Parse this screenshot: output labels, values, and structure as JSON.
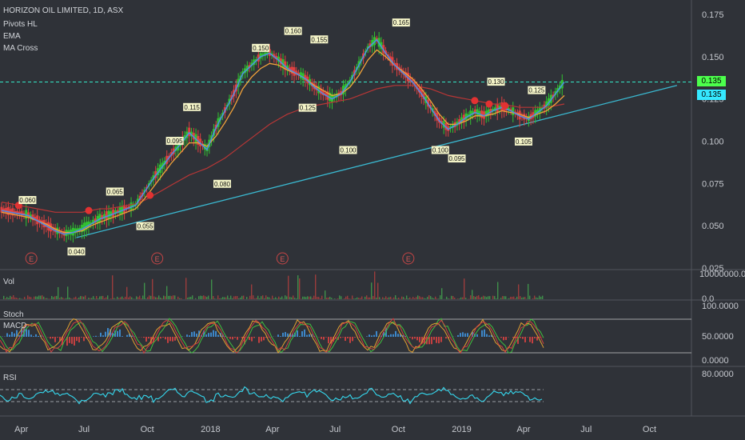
{
  "legend": [
    "HORIZON OIL LIMITED, 1D, ASX",
    "Pivots HL",
    "EMA",
    "MA Cross"
  ],
  "price_tags": [
    {
      "text": "0.135",
      "bg": "#4cff4c"
    },
    {
      "text": "0.135",
      "bg": "#35e8ff"
    }
  ],
  "panes": {
    "vol": "Vol",
    "stoch": "Stoch",
    "macd": "MACD",
    "rsi": "RSI"
  },
  "pane_axis": {
    "vol_top": "10000000.0",
    "vol_bottom": "0.0",
    "stoch_top": "100.0000",
    "stoch_mid": "50.0000",
    "stoch_bottom": "0.0000",
    "rsi_top": "80.0000"
  },
  "earnings_label": "E",
  "colors": {
    "up": "#31c231",
    "down": "#e04040",
    "ema_fast": "#4e8ee6",
    "ema_mid": "#f2a33a",
    "ma_long": "#b83636",
    "trend": "#3ab8d0",
    "hline": "#35e8c8",
    "rsi": "#35d8ee"
  },
  "chart_data": {
    "type": "line",
    "title": "HORIZON OIL LIMITED, 1D, ASX",
    "xlabel": "",
    "ylabel": "",
    "x_ticks": [
      "Apr",
      "Jul",
      "Oct",
      "2018",
      "Apr",
      "Jul",
      "Oct",
      "2019",
      "Apr",
      "Jul",
      "Oct"
    ],
    "y_ticks": [
      "0.175",
      "0.150",
      "0.125",
      "0.100",
      "0.075",
      "0.050",
      "0.025"
    ],
    "ylim": [
      0.025,
      0.175
    ],
    "pivot_labels": [
      "0.060",
      "0.040",
      "0.065",
      "0.055",
      "0.095",
      "0.115",
      "0.080",
      "0.150",
      "0.160",
      "0.155",
      "0.125",
      "0.100",
      "0.165",
      "0.100",
      "0.095",
      "0.130",
      "0.105",
      "0.125"
    ],
    "pivots": [
      {
        "label": "0.060",
        "x": "2017-04-10",
        "y": 0.06,
        "pos": "above"
      },
      {
        "label": "0.040",
        "x": "2017-06-20",
        "y": 0.04,
        "pos": "below"
      },
      {
        "label": "0.065",
        "x": "2017-08-15",
        "y": 0.065,
        "pos": "above"
      },
      {
        "label": "0.055",
        "x": "2017-09-28",
        "y": 0.055,
        "pos": "below"
      },
      {
        "label": "0.095",
        "x": "2017-11-10",
        "y": 0.095,
        "pos": "above"
      },
      {
        "label": "0.115",
        "x": "2017-12-05",
        "y": 0.115,
        "pos": "above"
      },
      {
        "label": "0.080",
        "x": "2018-01-18",
        "y": 0.08,
        "pos": "below"
      },
      {
        "label": "0.150",
        "x": "2018-03-15",
        "y": 0.15,
        "pos": "above"
      },
      {
        "label": "0.160",
        "x": "2018-05-01",
        "y": 0.16,
        "pos": "above"
      },
      {
        "label": "0.155",
        "x": "2018-06-08",
        "y": 0.155,
        "pos": "above"
      },
      {
        "label": "0.125",
        "x": "2018-05-22",
        "y": 0.125,
        "pos": "below"
      },
      {
        "label": "0.100",
        "x": "2018-07-20",
        "y": 0.1,
        "pos": "below"
      },
      {
        "label": "0.165",
        "x": "2018-10-05",
        "y": 0.165,
        "pos": "above"
      },
      {
        "label": "0.100",
        "x": "2018-12-01",
        "y": 0.1,
        "pos": "below"
      },
      {
        "label": "0.095",
        "x": "2018-12-25",
        "y": 0.095,
        "pos": "below"
      },
      {
        "label": "0.130",
        "x": "2019-02-20",
        "y": 0.13,
        "pos": "above"
      },
      {
        "label": "0.105",
        "x": "2019-04-01",
        "y": 0.105,
        "pos": "below"
      },
      {
        "label": "0.125",
        "x": "2019-04-20",
        "y": 0.125,
        "pos": "above"
      }
    ],
    "series": [
      {
        "values": [
          0.059,
          0.058,
          0.057,
          0.056,
          0.053,
          0.05,
          0.047,
          0.045,
          0.046,
          0.048,
          0.051,
          0.054,
          0.056,
          0.058,
          0.06,
          0.062,
          0.07,
          0.078,
          0.085,
          0.092,
          0.098,
          0.105,
          0.1,
          0.095,
          0.108,
          0.118,
          0.128,
          0.14,
          0.145,
          0.15,
          0.152,
          0.148,
          0.143,
          0.14,
          0.137,
          0.132,
          0.128,
          0.125,
          0.128,
          0.135,
          0.145,
          0.155,
          0.16,
          0.152,
          0.145,
          0.14,
          0.135,
          0.128,
          0.12,
          0.112,
          0.107,
          0.11,
          0.114,
          0.117,
          0.115,
          0.118,
          0.12,
          0.118,
          0.115,
          0.113,
          0.117,
          0.121,
          0.128,
          0.135
        ]
      },
      {
        "values": [
          0.058,
          0.057,
          0.056,
          0.055,
          0.053,
          0.051,
          0.048,
          0.046,
          0.046,
          0.047,
          0.05,
          0.052,
          0.054,
          0.056,
          0.058,
          0.06,
          0.066,
          0.073,
          0.08,
          0.087,
          0.093,
          0.099,
          0.099,
          0.097,
          0.103,
          0.111,
          0.12,
          0.131,
          0.138,
          0.143,
          0.146,
          0.145,
          0.142,
          0.14,
          0.137,
          0.133,
          0.13,
          0.127,
          0.128,
          0.132,
          0.139,
          0.148,
          0.154,
          0.15,
          0.145,
          0.141,
          0.137,
          0.131,
          0.124,
          0.116,
          0.11,
          0.11,
          0.112,
          0.115,
          0.115,
          0.116,
          0.118,
          0.117,
          0.116,
          0.114,
          0.116,
          0.118,
          0.122,
          0.127
        ]
      },
      {
        "values": [
          0.064,
          0.063,
          0.062,
          0.061,
          0.06,
          0.059,
          0.058,
          0.058,
          0.058,
          0.058,
          0.059,
          0.06,
          0.06,
          0.061,
          0.062,
          0.063,
          0.065,
          0.068,
          0.071,
          0.074,
          0.077,
          0.08,
          0.082,
          0.084,
          0.087,
          0.09,
          0.094,
          0.098,
          0.102,
          0.106,
          0.11,
          0.113,
          0.116,
          0.118,
          0.12,
          0.121,
          0.122,
          0.123,
          0.124,
          0.125,
          0.127,
          0.129,
          0.131,
          0.132,
          0.133,
          0.133,
          0.133,
          0.132,
          0.131,
          0.129,
          0.127,
          0.126,
          0.125,
          0.124,
          0.123,
          0.122,
          0.122,
          0.121,
          0.12,
          0.12,
          0.12,
          0.12,
          0.121,
          0.122
        ]
      }
    ],
    "trendline": [
      {
        "x": "2017-06-20",
        "y": 0.043
      },
      {
        "x": "2019-11-10",
        "y": 0.133
      }
    ],
    "resistance": 0.135,
    "last_price": 0.135
  }
}
